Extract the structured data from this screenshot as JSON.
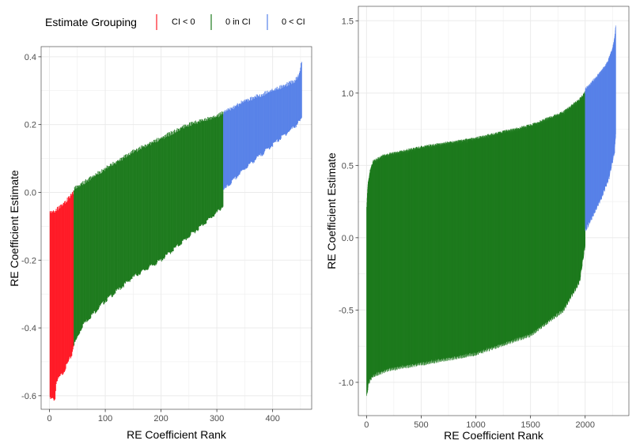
{
  "legend": {
    "title": "Estimate Grouping",
    "position": "top",
    "items": [
      {
        "label": "CI < 0",
        "color": "#ff1a26"
      },
      {
        "label": "0 in CI",
        "color": "#1e7b1e"
      },
      {
        "label": "0 < CI",
        "color": "#5882e8"
      }
    ]
  },
  "chart_data": [
    {
      "type": "bar",
      "subtype": "interval-segments",
      "xlabel": "RE Coefficient Rank",
      "ylabel": "RE Coefficient Estimate",
      "xlim": [
        -15,
        470
      ],
      "ylim": [
        -0.64,
        0.43
      ],
      "xticks": [
        0,
        100,
        200,
        300,
        400
      ],
      "yticks": [
        -0.6,
        -0.4,
        -0.2,
        0.0,
        0.2,
        0.4
      ],
      "ytick_labels": [
        "-0.6",
        "-0.4",
        "-0.2",
        "0.0",
        "0.2",
        "0.4"
      ],
      "grid": true,
      "n_points": 452,
      "series": [
        {
          "group": "CI < 0",
          "x_range": [
            1,
            43
          ],
          "lower": [
            [
              1,
              -0.61
            ],
            [
              10,
              -0.61
            ],
            [
              12,
              -0.56
            ],
            [
              25,
              -0.53
            ],
            [
              40,
              -0.48
            ],
            [
              43,
              -0.45
            ]
          ],
          "upper": [
            [
              1,
              -0.06
            ],
            [
              10,
              -0.055
            ],
            [
              20,
              -0.04
            ],
            [
              30,
              -0.025
            ],
            [
              43,
              0.0
            ]
          ]
        },
        {
          "group": "0 in CI",
          "x_range": [
            44,
            311
          ],
          "lower": [
            [
              44,
              -0.45
            ],
            [
              60,
              -0.39
            ],
            [
              100,
              -0.32
            ],
            [
              150,
              -0.25
            ],
            [
              200,
              -0.2
            ],
            [
              250,
              -0.13
            ],
            [
              300,
              -0.06
            ],
            [
              311,
              -0.04
            ]
          ],
          "upper": [
            [
              44,
              0.01
            ],
            [
              100,
              0.07
            ],
            [
              150,
              0.12
            ],
            [
              200,
              0.16
            ],
            [
              250,
              0.2
            ],
            [
              300,
              0.225
            ],
            [
              311,
              0.235
            ]
          ]
        },
        {
          "group": "0 < CI",
          "x_range": [
            312,
            452
          ],
          "lower": [
            [
              312,
              0.005
            ],
            [
              350,
              0.07
            ],
            [
              400,
              0.14
            ],
            [
              440,
              0.195
            ],
            [
              452,
              0.215
            ]
          ],
          "upper": [
            [
              312,
              0.235
            ],
            [
              350,
              0.27
            ],
            [
              400,
              0.3
            ],
            [
              440,
              0.33
            ],
            [
              448,
              0.35
            ],
            [
              452,
              0.385
            ]
          ]
        }
      ]
    },
    {
      "type": "bar",
      "subtype": "interval-segments",
      "xlabel": "RE Coefficient Rank",
      "ylabel": "RE Coefficient Estimate",
      "xlim": [
        -75,
        2400
      ],
      "ylim": [
        -1.23,
        1.6
      ],
      "xticks": [
        0,
        500,
        1000,
        1500,
        2000
      ],
      "yticks": [
        -1.0,
        -0.5,
        0.0,
        0.5,
        1.0,
        1.5
      ],
      "ytick_labels": [
        "-1.0",
        "-0.5",
        "0.0",
        "0.5",
        "1.0",
        "1.5"
      ],
      "grid": true,
      "n_points": 2280,
      "series": [
        {
          "group": "0 in CI",
          "x_range": [
            1,
            2000
          ],
          "lower": [
            [
              1,
              -1.1
            ],
            [
              20,
              -1.0
            ],
            [
              60,
              -0.95
            ],
            [
              200,
              -0.91
            ],
            [
              500,
              -0.87
            ],
            [
              1000,
              -0.8
            ],
            [
              1500,
              -0.67
            ],
            [
              1800,
              -0.5
            ],
            [
              1950,
              -0.3
            ],
            [
              2000,
              -0.05
            ]
          ],
          "upper": [
            [
              1,
              0.2
            ],
            [
              10,
              0.35
            ],
            [
              30,
              0.45
            ],
            [
              60,
              0.52
            ],
            [
              150,
              0.56
            ],
            [
              500,
              0.62
            ],
            [
              1000,
              0.68
            ],
            [
              1500,
              0.77
            ],
            [
              1800,
              0.86
            ],
            [
              1950,
              0.95
            ],
            [
              2000,
              1.0
            ]
          ]
        },
        {
          "group": "0 < CI",
          "x_range": [
            2001,
            2280
          ],
          "lower": [
            [
              2001,
              0.05
            ],
            [
              2050,
              0.12
            ],
            [
              2150,
              0.28
            ],
            [
              2220,
              0.42
            ],
            [
              2270,
              0.6
            ],
            [
              2280,
              0.72
            ]
          ],
          "upper": [
            [
              2001,
              1.02
            ],
            [
              2100,
              1.1
            ],
            [
              2200,
              1.2
            ],
            [
              2250,
              1.3
            ],
            [
              2270,
              1.38
            ],
            [
              2280,
              1.47
            ]
          ]
        }
      ]
    }
  ]
}
